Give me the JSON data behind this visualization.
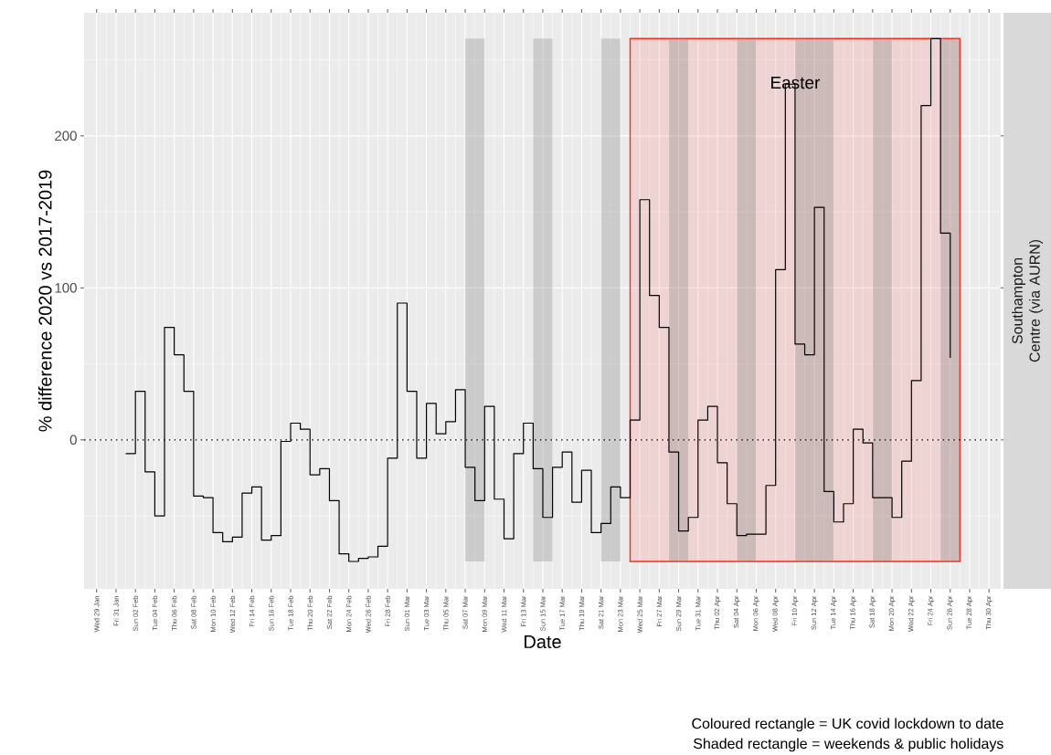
{
  "chart_data": {
    "type": "step",
    "ylabel": "% difference 2020 vs 2017-2019",
    "xlabel": "Date",
    "y2label": "Southampton Centre (via AURN)",
    "x": [
      "2020-02-01",
      "2020-02-02",
      "2020-02-03",
      "2020-02-04",
      "2020-02-05",
      "2020-02-06",
      "2020-02-07",
      "2020-02-08",
      "2020-02-09",
      "2020-02-10",
      "2020-02-11",
      "2020-02-12",
      "2020-02-13",
      "2020-02-14",
      "2020-02-15",
      "2020-02-16",
      "2020-02-17",
      "2020-02-18",
      "2020-02-19",
      "2020-02-20",
      "2020-02-21",
      "2020-02-22",
      "2020-02-23",
      "2020-02-24",
      "2020-02-25",
      "2020-02-26",
      "2020-02-27",
      "2020-02-28",
      "2020-02-29",
      "2020-03-01",
      "2020-03-02",
      "2020-03-03",
      "2020-03-04",
      "2020-03-05",
      "2020-03-06",
      "2020-03-07",
      "2020-03-08",
      "2020-03-09",
      "2020-03-10",
      "2020-03-11",
      "2020-03-12",
      "2020-03-13",
      "2020-03-14",
      "2020-03-15",
      "2020-03-16",
      "2020-03-17",
      "2020-03-18",
      "2020-03-19",
      "2020-03-20",
      "2020-03-21",
      "2020-03-22",
      "2020-03-23",
      "2020-03-24",
      "2020-03-25",
      "2020-03-26",
      "2020-03-27",
      "2020-03-28",
      "2020-03-29",
      "2020-03-30",
      "2020-03-31",
      "2020-04-01",
      "2020-04-02",
      "2020-04-03",
      "2020-04-04",
      "2020-04-05",
      "2020-04-06",
      "2020-04-07",
      "2020-04-08",
      "2020-04-09",
      "2020-04-10",
      "2020-04-11",
      "2020-04-12",
      "2020-04-13",
      "2020-04-14",
      "2020-04-15",
      "2020-04-16",
      "2020-04-17",
      "2020-04-18",
      "2020-04-19",
      "2020-04-20",
      "2020-04-21",
      "2020-04-22",
      "2020-04-23",
      "2020-04-24",
      "2020-04-25",
      "2020-04-26"
    ],
    "series": [
      {
        "color": "#000000",
        "values": [
          -9,
          32,
          -21,
          -50,
          74,
          56,
          32,
          -37,
          -38,
          -61,
          -67,
          -64,
          -35,
          -31,
          -66,
          -63,
          -1,
          11,
          7,
          -23,
          -19,
          -40,
          -75,
          -80,
          -78,
          -77,
          -70,
          -12,
          90,
          32,
          -12,
          24,
          4,
          12,
          33,
          -18,
          -40,
          22,
          -39,
          -65,
          -9,
          11,
          -19,
          -51,
          -18,
          -8,
          -41,
          -20,
          -61,
          -55,
          -31,
          -38,
          13,
          158,
          95,
          74,
          -8,
          -60,
          -51,
          13,
          22,
          -15,
          -42,
          -63,
          -62,
          -62,
          -30,
          112,
          234,
          63,
          56,
          153,
          -34,
          -54,
          -42,
          7,
          -2,
          -38,
          -38,
          -51,
          -14,
          39,
          220,
          264,
          136,
          54
        ]
      }
    ],
    "xlim": [
      "2020-01-27T17:00",
      "2020-05-01T05:00"
    ],
    "xticks": [
      {
        "value": "2020-01-29",
        "label": "Wed 29 Jan"
      },
      {
        "value": "2020-01-31",
        "label": "Fri 31 Jan"
      },
      {
        "value": "2020-02-02",
        "label": "Sun 02 Feb"
      },
      {
        "value": "2020-02-04",
        "label": "Tue 04 Feb"
      },
      {
        "value": "2020-02-06",
        "label": "Thu 06 Feb"
      },
      {
        "value": "2020-02-08",
        "label": "Sat 08 Feb"
      },
      {
        "value": "2020-02-10",
        "label": "Mon 10 Feb"
      },
      {
        "value": "2020-02-12",
        "label": "Wed 12 Feb"
      },
      {
        "value": "2020-02-14",
        "label": "Fri 14 Feb"
      },
      {
        "value": "2020-02-16",
        "label": "Sun 16 Feb"
      },
      {
        "value": "2020-02-18",
        "label": "Tue 18 Feb"
      },
      {
        "value": "2020-02-20",
        "label": "Thu 20 Feb"
      },
      {
        "value": "2020-02-22",
        "label": "Sat 22 Feb"
      },
      {
        "value": "2020-02-24",
        "label": "Mon 24 Feb"
      },
      {
        "value": "2020-02-26",
        "label": "Wed 26 Feb"
      },
      {
        "value": "2020-02-28",
        "label": "Fri 28 Feb"
      },
      {
        "value": "2020-03-01",
        "label": "Sun 01 Mar"
      },
      {
        "value": "2020-03-03",
        "label": "Tue 03 Mar"
      },
      {
        "value": "2020-03-05",
        "label": "Thu 05 Mar"
      },
      {
        "value": "2020-03-07",
        "label": "Sat 07 Mar"
      },
      {
        "value": "2020-03-09",
        "label": "Mon 09 Mar"
      },
      {
        "value": "2020-03-11",
        "label": "Wed 11 Mar"
      },
      {
        "value": "2020-03-13",
        "label": "Fri 13 Mar"
      },
      {
        "value": "2020-03-15",
        "label": "Sun 15 Mar"
      },
      {
        "value": "2020-03-17",
        "label": "Tue 17 Mar"
      },
      {
        "value": "2020-03-19",
        "label": "Thu 19 Mar"
      },
      {
        "value": "2020-03-21",
        "label": "Sat 21 Mar"
      },
      {
        "value": "2020-03-23",
        "label": "Mon 23 Mar"
      },
      {
        "value": "2020-03-25",
        "label": "Wed 25 Mar"
      },
      {
        "value": "2020-03-27",
        "label": "Fri 27 Mar"
      },
      {
        "value": "2020-03-29",
        "label": "Sun 29 Mar"
      },
      {
        "value": "2020-03-31",
        "label": "Tue 31 Mar"
      },
      {
        "value": "2020-04-02",
        "label": "Thu 02 Apr"
      },
      {
        "value": "2020-04-04",
        "label": "Sat 04 Apr"
      },
      {
        "value": "2020-04-06",
        "label": "Mon 06 Apr"
      },
      {
        "value": "2020-04-08",
        "label": "Wed 08 Apr"
      },
      {
        "value": "2020-04-10",
        "label": "Fri 10 Apr"
      },
      {
        "value": "2020-04-12",
        "label": "Sun 12 Apr"
      },
      {
        "value": "2020-04-14",
        "label": "Tue 14 Apr"
      },
      {
        "value": "2020-04-16",
        "label": "Thu 16 Apr"
      },
      {
        "value": "2020-04-18",
        "label": "Sat 18 Apr"
      },
      {
        "value": "2020-04-20",
        "label": "Mon 20 Apr"
      },
      {
        "value": "2020-04-22",
        "label": "Wed 22 Apr"
      },
      {
        "value": "2020-04-24",
        "label": "Fri 24 Apr"
      },
      {
        "value": "2020-04-26",
        "label": "Sun 26 Apr"
      },
      {
        "value": "2020-04-28",
        "label": "Tue 28 Apr"
      },
      {
        "value": "2020-04-30",
        "label": "Thu 30 Apr"
      }
    ],
    "ylim": [
      -98,
      281
    ],
    "yticks": [
      0,
      100,
      200
    ],
    "grid": true,
    "ref_lines": [
      {
        "axis": "y",
        "value": 0,
        "color": "#000000",
        "line_style": "dotted"
      }
    ],
    "bands": [
      {
        "axis": "x",
        "from": "2020-03-24",
        "to": "2020-04-27",
        "color": "#ff2a1a"
      },
      {
        "axis": "x",
        "from": "2020-03-07",
        "to": "2020-03-09",
        "color": "#808080"
      },
      {
        "axis": "x",
        "from": "2020-03-14",
        "to": "2020-03-16",
        "color": "#808080"
      },
      {
        "axis": "x",
        "from": "2020-03-21",
        "to": "2020-03-23",
        "color": "#808080"
      },
      {
        "axis": "x",
        "from": "2020-03-28",
        "to": "2020-03-30",
        "color": "#808080"
      },
      {
        "axis": "x",
        "from": "2020-04-04",
        "to": "2020-04-06",
        "color": "#808080"
      },
      {
        "axis": "x",
        "from": "2020-04-10",
        "to": "2020-04-14",
        "color": "#808080"
      },
      {
        "axis": "x",
        "from": "2020-04-18",
        "to": "2020-04-20",
        "color": "#808080"
      },
      {
        "axis": "x",
        "from": "2020-04-25",
        "to": "2020-04-27",
        "color": "#808080"
      }
    ],
    "annotations": [
      {
        "text": "Easter",
        "x": "2020-04-10",
        "y": 235
      },
      "Coloured rectangle = UK covid lockdown to date",
      "Shaded rectangle = weekends & public holidays"
    ]
  }
}
